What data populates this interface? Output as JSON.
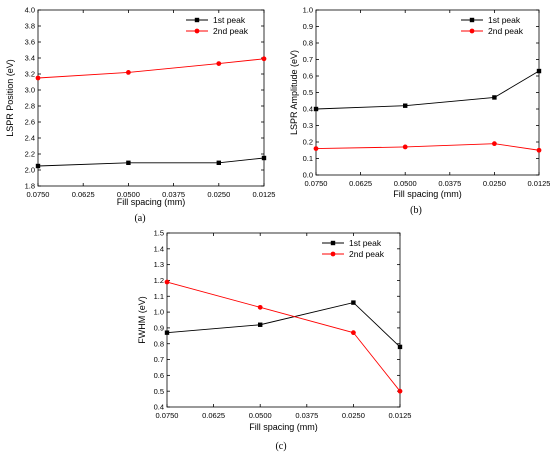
{
  "chart_data": [
    {
      "type": "line",
      "panel_label": "(a)",
      "xlabel": "Fill spacing (mm)",
      "ylabel": "LSPR Position (eV)",
      "categories": [
        "0.0750",
        "0.0500",
        "0.0250",
        "0.0125"
      ],
      "x": [
        0.075,
        0.05,
        0.025,
        0.0125
      ],
      "x_ticks": [
        "0.0750",
        "0.0625",
        "0.0500",
        "0.0375",
        "0.0250",
        "0.0125"
      ],
      "x_tick_values": [
        0.075,
        0.0625,
        0.05,
        0.0375,
        0.025,
        0.0125
      ],
      "xlim": [
        0.075,
        0.0125
      ],
      "ylim": [
        1.8,
        4.0
      ],
      "y_ticks": [
        "1.8",
        "2.0",
        "2.2",
        "2.4",
        "2.6",
        "2.8",
        "3.0",
        "3.2",
        "3.4",
        "3.6",
        "3.8",
        "4.0"
      ],
      "legend_position": "top-right",
      "series": [
        {
          "name": "1st peak",
          "color": "#000000",
          "marker": "square",
          "values": [
            2.05,
            2.09,
            2.09,
            2.15
          ]
        },
        {
          "name": "2nd peak",
          "color": "#ff0000",
          "marker": "circle",
          "values": [
            3.15,
            3.22,
            3.33,
            3.39
          ]
        }
      ]
    },
    {
      "type": "line",
      "panel_label": "(b)",
      "xlabel": "Fill spacing (mm)",
      "ylabel": "LSPR Amplitude (eV)",
      "categories": [
        "0.0750",
        "0.0500",
        "0.0250",
        "0.0125"
      ],
      "x": [
        0.075,
        0.05,
        0.025,
        0.0125
      ],
      "x_ticks": [
        "0.0750",
        "0.0625",
        "0.0500",
        "0.0375",
        "0.0250",
        "0.0125"
      ],
      "x_tick_values": [
        0.075,
        0.0625,
        0.05,
        0.0375,
        0.025,
        0.0125
      ],
      "xlim": [
        0.075,
        0.0125
      ],
      "ylim": [
        0.0,
        1.0
      ],
      "y_ticks": [
        "0.0",
        "0.1",
        "0.2",
        "0.3",
        "0.4",
        "0.5",
        "0.6",
        "0.7",
        "0.8",
        "0.9",
        "1.0"
      ],
      "legend_position": "top-right",
      "series": [
        {
          "name": "1st peak",
          "color": "#000000",
          "marker": "square",
          "values": [
            0.4,
            0.42,
            0.47,
            0.63
          ]
        },
        {
          "name": "2nd peak",
          "color": "#ff0000",
          "marker": "circle",
          "values": [
            0.16,
            0.17,
            0.19,
            0.15
          ]
        }
      ]
    },
    {
      "type": "line",
      "panel_label": "(c)",
      "xlabel": "Fill spacing (mm)",
      "ylabel": "FWHM (eV)",
      "categories": [
        "0.0750",
        "0.0500",
        "0.0250",
        "0.0125"
      ],
      "x": [
        0.075,
        0.05,
        0.025,
        0.0125
      ],
      "x_ticks": [
        "0.0750",
        "0.0625",
        "0.0500",
        "0.0375",
        "0.0250",
        "0.0125"
      ],
      "x_tick_values": [
        0.075,
        0.0625,
        0.05,
        0.0375,
        0.025,
        0.0125
      ],
      "xlim": [
        0.075,
        0.0125
      ],
      "ylim": [
        0.4,
        1.5
      ],
      "y_ticks": [
        "0.4",
        "0.5",
        "0.6",
        "0.7",
        "0.8",
        "0.9",
        "1.0",
        "1.1",
        "1.2",
        "1.3",
        "1.4",
        "1.5"
      ],
      "legend_position": "top-right",
      "series": [
        {
          "name": "1st peak",
          "color": "#000000",
          "marker": "square",
          "values": [
            0.87,
            0.92,
            1.06,
            0.78
          ]
        },
        {
          "name": "2nd peak",
          "color": "#ff0000",
          "marker": "circle",
          "values": [
            1.19,
            1.03,
            0.87,
            0.5
          ]
        }
      ]
    }
  ]
}
